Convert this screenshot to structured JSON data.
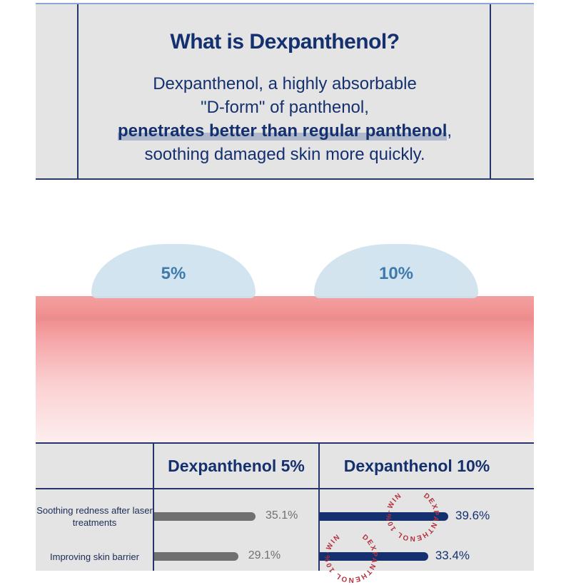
{
  "intro": {
    "title": "What is Dexpanthenol?",
    "line1": "Dexpanthenol, a highly absorbable",
    "line2": "\"D-form\" of panthenol,",
    "highlight": "penetrates better than regular panthenol",
    "comma": ",",
    "line4": "soothing damaged skin more quickly."
  },
  "drops": [
    {
      "label": "5%"
    },
    {
      "label": "10%"
    }
  ],
  "table": {
    "columns": [
      "Dexpanthenol 5%",
      "Dexpanthenol 10%"
    ],
    "rows": [
      {
        "label": "Soothing redness after laser treatments",
        "v5": 35.1,
        "v5_label": "35.1%",
        "v10": 39.6,
        "v10_label": "39.6%"
      },
      {
        "label": "Improving skin barrier",
        "v5": 29.1,
        "v5_label": "29.1%",
        "v10": 33.4,
        "v10_label": "33.4%"
      }
    ],
    "stamp_text": "DEXPANTHENOL 10%·WIN",
    "colors": {
      "bar5": "#707070",
      "bar10": "#14306e",
      "stamp": "#b5303e"
    }
  }
}
